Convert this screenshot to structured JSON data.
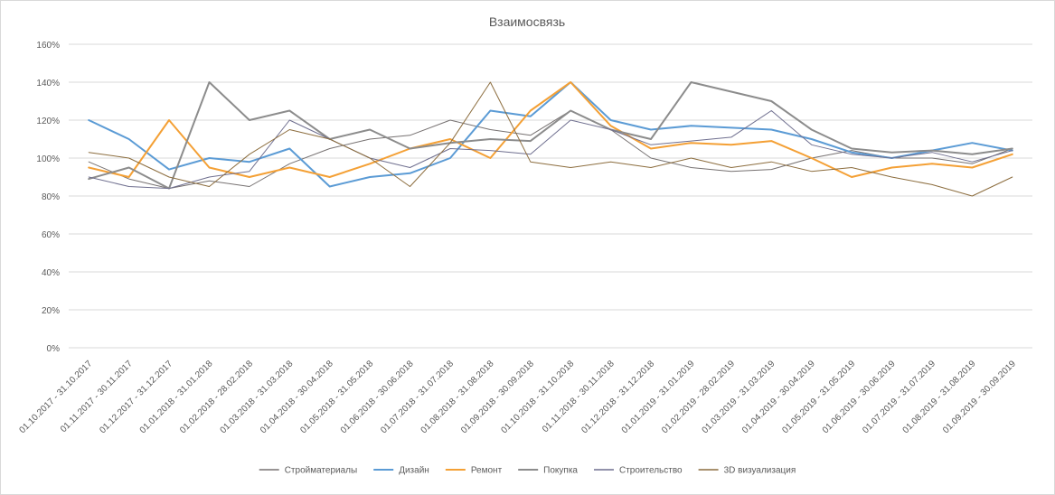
{
  "chart_data": {
    "type": "line",
    "title": "Взаимосвязь",
    "xlabel": "",
    "ylabel": "",
    "ylim": [
      0,
      1.6
    ],
    "y_ticks": [
      "0%",
      "20%",
      "40%",
      "60%",
      "80%",
      "100%",
      "120%",
      "140%",
      "160%"
    ],
    "grid": "horizontal",
    "legend_position": "bottom",
    "categories": [
      "01.10.2017 - 31.10.2017",
      "01.11.2017 - 30.11.2017",
      "01.12.2017 - 31.12.2017",
      "01.01.2018 - 31.01.2018",
      "01.02.2018 - 28.02.2018",
      "01.03.2018 - 31.03.2018",
      "01.04.2018 - 30.04.2018",
      "01.05.2018 - 31.05.2018",
      "01.06.2018 - 30.06.2018",
      "01.07.2018 - 31.07.2018",
      "01.08.2018 - 31.08.2018",
      "01.09.2018 - 30.09.2018",
      "01.10.2018 - 31.10.2018",
      "01.11.2018 - 30.11.2018",
      "01.12.2018 - 31.12.2018",
      "01.01.2019 - 31.01.2019",
      "01.02.2019 - 28.02.2019",
      "01.03.2019 - 31.03.2019",
      "01.04.2019 - 30.04.2019",
      "01.05.2019 - 31.05.2019",
      "01.06.2019 - 30.06.2019",
      "01.07.2019 - 31.07.2019",
      "01.08.2019 - 31.08.2019",
      "01.09.2019 - 30.09.2019"
    ],
    "series": [
      {
        "name": "Стройматериалы",
        "color": "#767171",
        "width": 1,
        "values": [
          0.98,
          0.89,
          0.84,
          0.88,
          0.85,
          0.97,
          1.05,
          1.1,
          1.12,
          1.2,
          1.15,
          1.12,
          1.25,
          1.15,
          1.0,
          0.95,
          0.93,
          0.94,
          1.0,
          1.04,
          1.0,
          1.0,
          0.97,
          1.05
        ]
      },
      {
        "name": "Дизайн",
        "color": "#5b9bd5",
        "width": 2,
        "values": [
          1.2,
          1.1,
          0.94,
          1.0,
          0.98,
          1.05,
          0.85,
          0.9,
          0.92,
          1.0,
          1.25,
          1.22,
          1.4,
          1.2,
          1.15,
          1.17,
          1.16,
          1.15,
          1.1,
          1.03,
          1.0,
          1.04,
          1.08,
          1.04
        ]
      },
      {
        "name": "Ремонт",
        "color": "#f4a035",
        "width": 2,
        "values": [
          0.95,
          0.9,
          1.2,
          0.95,
          0.9,
          0.95,
          0.9,
          0.97,
          1.05,
          1.1,
          1.0,
          1.25,
          1.4,
          1.17,
          1.05,
          1.08,
          1.07,
          1.09,
          1.0,
          0.9,
          0.95,
          0.97,
          0.95,
          1.02
        ]
      },
      {
        "name": "Покупка",
        "color": "#8c8c8c",
        "width": 2,
        "values": [
          0.89,
          0.95,
          0.84,
          1.4,
          1.2,
          1.25,
          1.1,
          1.15,
          1.05,
          1.08,
          1.1,
          1.09,
          1.25,
          1.15,
          1.1,
          1.4,
          1.35,
          1.3,
          1.15,
          1.05,
          1.03,
          1.04,
          1.02,
          1.05
        ]
      },
      {
        "name": "Строительство",
        "color": "#6f6f8f",
        "width": 1,
        "values": [
          0.9,
          0.85,
          0.84,
          0.9,
          0.93,
          1.2,
          1.1,
          1.0,
          0.95,
          1.05,
          1.04,
          1.02,
          1.2,
          1.15,
          1.07,
          1.09,
          1.11,
          1.25,
          1.07,
          1.02,
          1.0,
          1.03,
          0.98,
          1.04
        ]
      },
      {
        "name": "3D визуализация",
        "color": "#8c6d3e",
        "width": 1,
        "values": [
          1.03,
          1.0,
          0.9,
          0.85,
          1.02,
          1.15,
          1.1,
          1.0,
          0.85,
          1.08,
          1.4,
          0.98,
          0.95,
          0.98,
          0.95,
          1.0,
          0.95,
          0.98,
          0.93,
          0.95,
          0.9,
          0.86,
          0.8,
          0.9
        ]
      }
    ]
  }
}
